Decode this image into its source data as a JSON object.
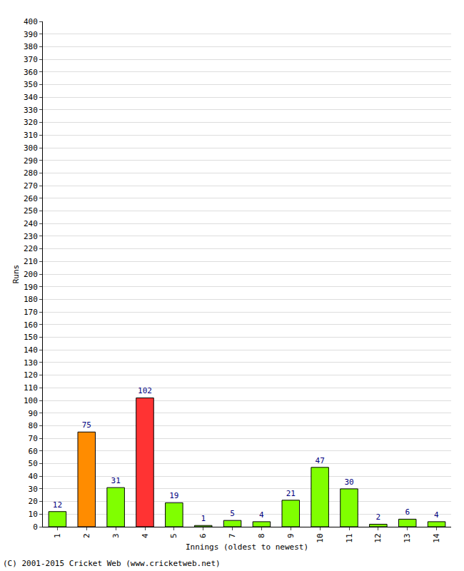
{
  "chart_data": {
    "type": "bar",
    "x_label": "Innings (oldest to newest)",
    "y_label": "Runs",
    "categories": [
      "1",
      "2",
      "3",
      "4",
      "5",
      "6",
      "7",
      "8",
      "9",
      "10",
      "11",
      "12",
      "13",
      "14"
    ],
    "values": [
      12,
      75,
      31,
      102,
      19,
      1,
      5,
      4,
      21,
      47,
      30,
      2,
      6,
      4
    ],
    "colors": [
      "#80ff00",
      "#ff8c00",
      "#80ff00",
      "#ff3333",
      "#80ff00",
      "#80ff00",
      "#80ff00",
      "#80ff00",
      "#80ff00",
      "#80ff00",
      "#80ff00",
      "#80ff00",
      "#80ff00",
      "#80ff00"
    ],
    "ylim": [
      0,
      400
    ],
    "yticks": [
      0,
      10,
      20,
      30,
      40,
      50,
      60,
      70,
      80,
      90,
      100,
      110,
      120,
      130,
      140,
      150,
      160,
      170,
      180,
      190,
      200,
      210,
      220,
      230,
      240,
      250,
      260,
      270,
      280,
      290,
      300,
      310,
      320,
      330,
      340,
      350,
      360,
      370,
      380,
      390,
      400
    ],
    "grid": true,
    "data_labels": true,
    "annotations": [
      {
        "text": "(C) 2001-2015 Cricket Web (www.cricketweb.net)"
      }
    ]
  }
}
